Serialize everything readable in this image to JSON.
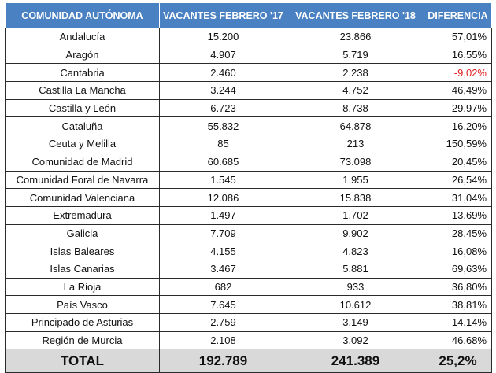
{
  "headers": [
    "COMUNIDAD AUTÓNOMA",
    "VACANTES FEBRERO '17",
    "VACANTES FEBRERO '18",
    "DIFERENCIA"
  ],
  "rows": [
    [
      "Andalucía",
      "15.200",
      "23.866",
      "57,01%"
    ],
    [
      "Aragón",
      "4.907",
      "5.719",
      "16,55%"
    ],
    [
      "Cantabria",
      "2.460",
      "2.238",
      "-9,02%"
    ],
    [
      "Castilla La Mancha",
      "3.244",
      "4.752",
      "46,49%"
    ],
    [
      "Castilla y León",
      "6.723",
      "8.738",
      "29,97%"
    ],
    [
      "Cataluña",
      "55.832",
      "64.878",
      "16,20%"
    ],
    [
      "Ceuta y Melilla",
      "85",
      "213",
      "150,59%"
    ],
    [
      "Comunidad de Madrid",
      "60.685",
      "73.098",
      "20,45%"
    ],
    [
      "Comunidad Foral de Navarra",
      "1.545",
      "1.955",
      "26,54%"
    ],
    [
      "Comunidad Valenciana",
      "12.086",
      "15.838",
      "31,04%"
    ],
    [
      "Extremadura",
      "1.497",
      "1.702",
      "13,69%"
    ],
    [
      "Galicia",
      "7.709",
      "9.902",
      "28,45%"
    ],
    [
      "Islas Baleares",
      "4.155",
      "4.823",
      "16,08%"
    ],
    [
      "Islas Canarias",
      "3.467",
      "5.881",
      "69,63%"
    ],
    [
      "La Rioja",
      "682",
      "933",
      "36,80%"
    ],
    [
      "País Vasco",
      "7.645",
      "10.612",
      "38,81%"
    ],
    [
      "Principado de Asturias",
      "2.759",
      "3.149",
      "14,14%"
    ],
    [
      "Región de Murcia",
      "2.108",
      "3.092",
      "46,68%"
    ]
  ],
  "total": [
    "TOTAL",
    "192.789",
    "241.389",
    "25,2%"
  ],
  "colors": {
    "header_bg": "#4a81c3",
    "header_text": "#ffffff",
    "negative_text": "#e02020",
    "total_bg": "#d9d9d9"
  }
}
